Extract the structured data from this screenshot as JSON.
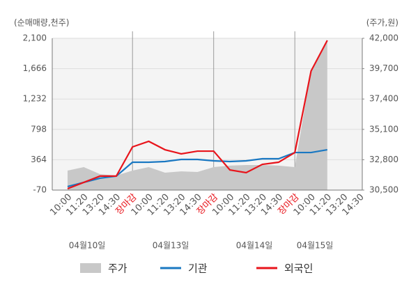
{
  "chart_data": {
    "type": "line",
    "y_axis_label": "(순매매량,천주)",
    "y2_axis_label": "(주가,원)",
    "categories": [
      "10:00",
      "11:20",
      "13:20",
      "14:30",
      "장마감",
      "10:00",
      "11:20",
      "13:20",
      "14:30",
      "장마감",
      "10:00",
      "11:20",
      "13:20",
      "14:30",
      "장마감",
      "10:00",
      "11:20",
      "13:20",
      "14:30"
    ],
    "dates": [
      "04월10일",
      "04월13일",
      "04월14일",
      "04월15일"
    ],
    "ylim": [
      -70,
      2100
    ],
    "yticks": [
      -70,
      364,
      798,
      {
        "value": 1232,
        "label": "1,232"
      },
      {
        "value": 1666,
        "label": "1,666"
      },
      {
        "value": 2100,
        "label": "2,100"
      }
    ],
    "y2lim": [
      30500,
      42000
    ],
    "y2ticks": [
      {
        "value": 30500,
        "label": "30,500"
      },
      {
        "value": 32800,
        "label": "32,800"
      },
      {
        "value": 35100,
        "label": "35,100"
      },
      {
        "value": 37400,
        "label": "37,400"
      },
      {
        "value": 39700,
        "label": "39,700"
      },
      {
        "value": 42000,
        "label": "42,000"
      }
    ],
    "grid": true,
    "series": [
      {
        "name": "주가",
        "color": "#c8c8c8",
        "axis": "y2",
        "kind": "area",
        "values": [
          31980,
          32240,
          31710,
          31600,
          31980,
          32240,
          31820,
          31920,
          31870,
          32240,
          32350,
          32400,
          32400,
          32350,
          32240,
          39620,
          41840,
          null,
          null
        ]
      },
      {
        "name": "기관",
        "color": "#1a78c2",
        "values": [
          -20,
          40,
          100,
          130,
          328,
          328,
          338,
          368,
          368,
          348,
          338,
          348,
          378,
          378,
          467,
          467,
          507,
          null,
          null
        ]
      },
      {
        "name": "외국인",
        "color": "#e8141b",
        "values": [
          -50,
          40,
          130,
          130,
          547,
          627,
          507,
          448,
          487,
          487,
          218,
          179,
          298,
          328,
          467,
          1632,
          2070,
          null,
          null
        ]
      }
    ]
  }
}
